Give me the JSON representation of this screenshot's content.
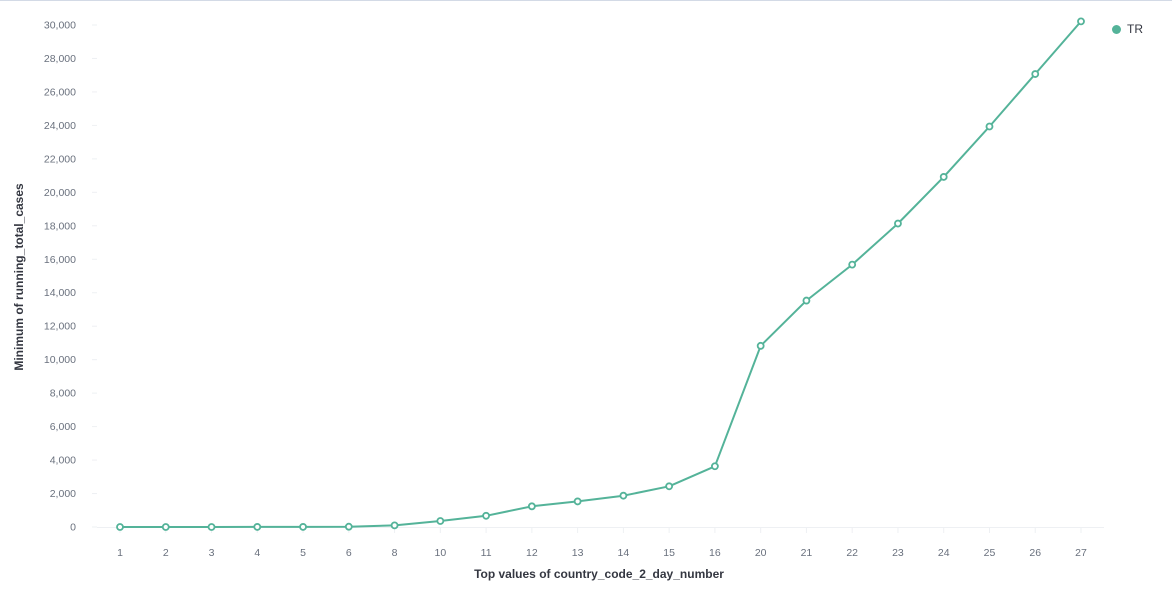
{
  "chart_data": {
    "type": "line",
    "xlabel": "Top values of country_code_2_day_number",
    "ylabel": "Minimum of running_total_cases",
    "categories": [
      "1",
      "2",
      "3",
      "4",
      "5",
      "6",
      "8",
      "10",
      "11",
      "12",
      "13",
      "14",
      "15",
      "16",
      "20",
      "21",
      "22",
      "23",
      "24",
      "25",
      "26",
      "27"
    ],
    "series": [
      {
        "name": "TR",
        "color": "#54b399",
        "values": [
          1,
          1,
          1,
          5,
          5,
          18,
          98,
          359,
          670,
          1236,
          1529,
          1872,
          2433,
          3629,
          10827,
          13531,
          15679,
          18135,
          20921,
          23934,
          27069,
          30217
        ]
      }
    ],
    "ylim": [
      0,
      30000
    ],
    "yticks": [
      0,
      2000,
      4000,
      6000,
      8000,
      10000,
      12000,
      14000,
      16000,
      18000,
      20000,
      22000,
      24000,
      26000,
      28000,
      30000
    ],
    "ytick_labels": [
      "0",
      "2,000",
      "4,000",
      "6,000",
      "8,000",
      "10,000",
      "12,000",
      "14,000",
      "16,000",
      "18,000",
      "20,000",
      "22,000",
      "24,000",
      "26,000",
      "28,000",
      "30,000"
    ],
    "grid": false,
    "legend_position": "top-right"
  }
}
